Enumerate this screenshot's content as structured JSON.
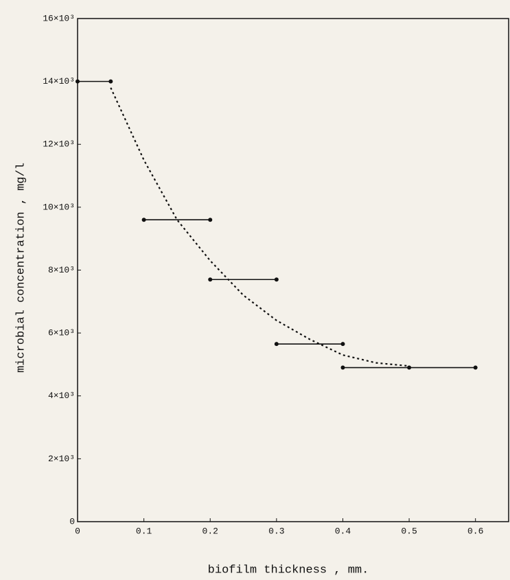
{
  "chart_data": {
    "type": "line",
    "x_label": "biofilm thickness , mm.",
    "y_label": "microbial concentration , mg/l",
    "xlim": [
      0,
      0.65
    ],
    "ylim": [
      0,
      16000
    ],
    "xticks": [
      0,
      0.1,
      0.2,
      0.3,
      0.4,
      0.5,
      0.6
    ],
    "yticks": [
      0,
      {
        "value": 2000,
        "label": "2×10³"
      },
      {
        "value": 4000,
        "label": "4×10³"
      },
      {
        "value": 6000,
        "label": "6×10³"
      },
      {
        "value": 8000,
        "label": "8×10³"
      },
      {
        "value": 10000,
        "label": "10×10³"
      },
      {
        "value": 12000,
        "label": "12×10³"
      },
      {
        "value": 14000,
        "label": "14×10³"
      },
      {
        "value": 16000,
        "label": "16×10³"
      }
    ],
    "series": [
      {
        "color": "#111111",
        "x": [
          0,
          0.05
        ],
        "values": [
          14000,
          14000
        ]
      },
      {
        "color": "#111111",
        "x": [
          0.1,
          0.2
        ],
        "values": [
          9600,
          9600
        ]
      },
      {
        "color": "#111111",
        "x": [
          0.2,
          0.3
        ],
        "values": [
          7700,
          7700
        ]
      },
      {
        "color": "#111111",
        "x": [
          0.3,
          0.4
        ],
        "values": [
          5650,
          5650
        ]
      },
      {
        "color": "#111111",
        "x": [
          0.4,
          0.5,
          0.6
        ],
        "values": [
          4900,
          4900,
          4900
        ]
      },
      {
        "color": "#111111",
        "dashed": true,
        "x": [
          0.05,
          0.1,
          0.15,
          0.2,
          0.25,
          0.3,
          0.35,
          0.4,
          0.45,
          0.5
        ],
        "values": [
          13800,
          11500,
          9600,
          8300,
          7200,
          6400,
          5800,
          5300,
          5050,
          4950
        ]
      }
    ]
  }
}
